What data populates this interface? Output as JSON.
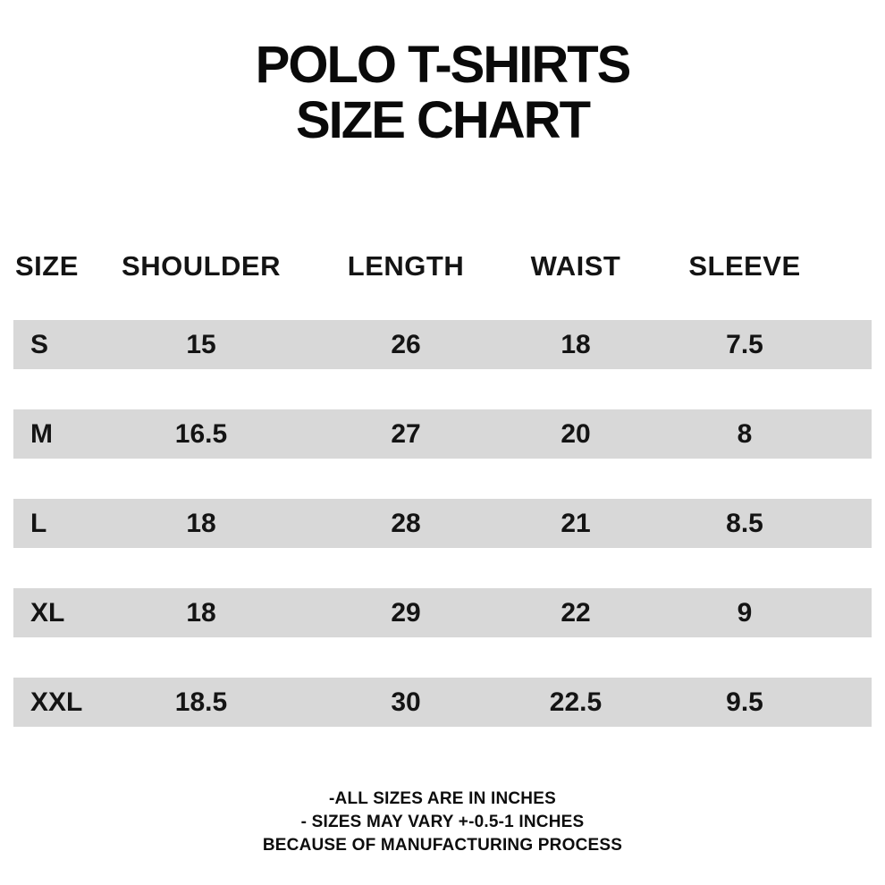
{
  "title": {
    "line1": "POLO T-SHIRTS",
    "line2": "SIZE CHART"
  },
  "table": {
    "headers": [
      "SIZE",
      "SHOULDER",
      "LENGTH",
      "WAIST",
      "SLEEVE"
    ],
    "rows": [
      {
        "size": "S",
        "shoulder": "15",
        "length": "26",
        "waist": "18",
        "sleeve": "7.5"
      },
      {
        "size": "M",
        "shoulder": "16.5",
        "length": "27",
        "waist": "20",
        "sleeve": "8"
      },
      {
        "size": "L",
        "shoulder": "18",
        "length": "28",
        "waist": "21",
        "sleeve": "8.5"
      },
      {
        "size": "XL",
        "shoulder": "18",
        "length": "29",
        "waist": "22",
        "sleeve": "9"
      },
      {
        "size": "XXL",
        "shoulder": "18.5",
        "length": "30",
        "waist": "22.5",
        "sleeve": "9.5"
      }
    ]
  },
  "footnotes": {
    "line1": "-ALL SIZES ARE IN INCHES",
    "line2": "- SIZES MAY VARY +-0.5-1 INCHES",
    "line3": "BECAUSE OF MANUFACTURING PROCESS"
  },
  "colors": {
    "band": "#d8d8d8",
    "text": "#141414",
    "title_text": "#0a0a0a",
    "background": "#ffffff"
  },
  "chart_data": {
    "type": "table",
    "title": "POLO T-SHIRTS SIZE CHART",
    "columns": [
      "SIZE",
      "SHOULDER",
      "LENGTH",
      "WAIST",
      "SLEEVE"
    ],
    "rows": [
      [
        "S",
        15,
        26,
        18,
        7.5
      ],
      [
        "M",
        16.5,
        27,
        20,
        8
      ],
      [
        "L",
        18,
        28,
        21,
        8.5
      ],
      [
        "XL",
        18,
        29,
        22,
        9
      ],
      [
        "XXL",
        18.5,
        30,
        22.5,
        9.5
      ]
    ],
    "units": "inches",
    "notes": [
      "-ALL SIZES ARE IN INCHES",
      "- SIZES MAY VARY +-0.5-1 INCHES",
      "BECAUSE OF MANUFACTURING PROCESS"
    ],
    "layout": {
      "row_band_color": "#d8d8d8",
      "alternating_bands": false,
      "grid": false
    }
  }
}
